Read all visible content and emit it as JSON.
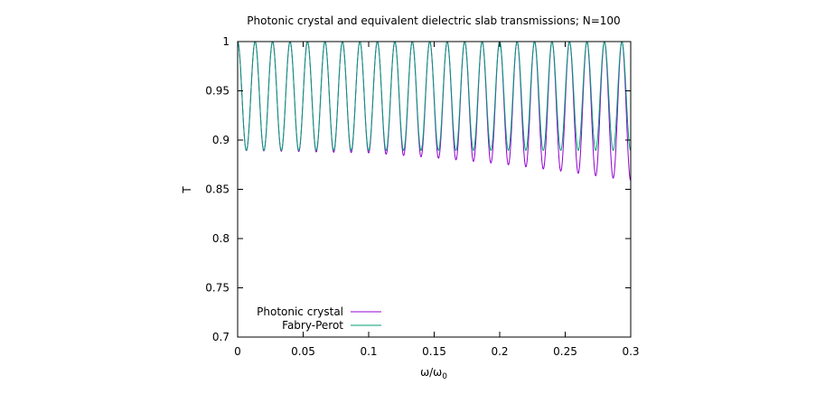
{
  "chart_data": {
    "type": "line",
    "title": "Photonic crystal and equivalent dielectric slab transmissions; N=100",
    "xlabel": "ω/ω",
    "xlabel_sub": "0",
    "ylabel": "T",
    "xlim": [
      0,
      0.3
    ],
    "ylim": [
      0.7,
      1.0
    ],
    "xticks": [
      0,
      0.05,
      0.1,
      0.15,
      0.2,
      0.25,
      0.3
    ],
    "xtick_labels": [
      "0",
      "0.05",
      "0.1",
      "0.15",
      "0.2",
      "0.25",
      "0.3"
    ],
    "yticks": [
      0.7,
      0.75,
      0.8,
      0.85,
      0.9,
      0.95,
      1.0
    ],
    "ytick_labels": [
      "0.7",
      "0.75",
      "0.8",
      "0.85",
      "0.9",
      "0.95",
      "1"
    ],
    "grid": false,
    "legend_position": "bottom-left",
    "oscillation_period": 0.01333,
    "series": [
      {
        "name": "Photonic crystal",
        "color": "#9400d3",
        "stroke_width": 1,
        "minima_trend": [
          [
            0.0,
            0.8895
          ],
          [
            0.1,
            0.887
          ],
          [
            0.15,
            0.882
          ],
          [
            0.2,
            0.876
          ],
          [
            0.25,
            0.868
          ],
          [
            0.3,
            0.859
          ]
        ]
      },
      {
        "name": "Fabry-Perot",
        "color": "#009e73",
        "stroke_width": 1,
        "minima_trend": [
          [
            0.0,
            0.8895
          ],
          [
            0.3,
            0.8895
          ]
        ]
      }
    ]
  }
}
